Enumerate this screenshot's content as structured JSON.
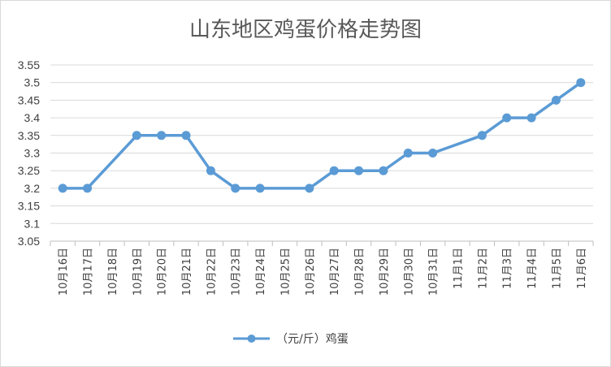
{
  "chart_data": {
    "type": "line",
    "title": "山东地区鸡蛋价格走势图",
    "xlabel": "",
    "ylabel": "",
    "ylim": [
      3.05,
      3.55
    ],
    "yticks": [
      "3.05",
      "3.1",
      "3.15",
      "3.2",
      "3.25",
      "3.3",
      "3.35",
      "3.4",
      "3.45",
      "3.5",
      "3.55"
    ],
    "grid": true,
    "legend_position": "bottom",
    "categories": [
      "10月16日",
      "10月17日",
      "10月18日",
      "10月19日",
      "10月20日",
      "10月21日",
      "10月22日",
      "10月23日",
      "10月24日",
      "10月25日",
      "10月26日",
      "10月27日",
      "10月28日",
      "10月29日",
      "10月30日",
      "10月31日",
      "11月1日",
      "11月2日",
      "11月3日",
      "11月4日",
      "11月5日",
      "11月6日"
    ],
    "series": [
      {
        "name": "（元/斤）鸡蛋",
        "color": "#5b9bd5",
        "values": [
          3.2,
          3.2,
          null,
          3.35,
          3.35,
          3.35,
          3.25,
          3.2,
          3.2,
          null,
          3.2,
          3.25,
          3.25,
          3.25,
          3.3,
          3.3,
          null,
          3.35,
          3.4,
          3.4,
          3.45,
          3.5
        ]
      }
    ]
  }
}
